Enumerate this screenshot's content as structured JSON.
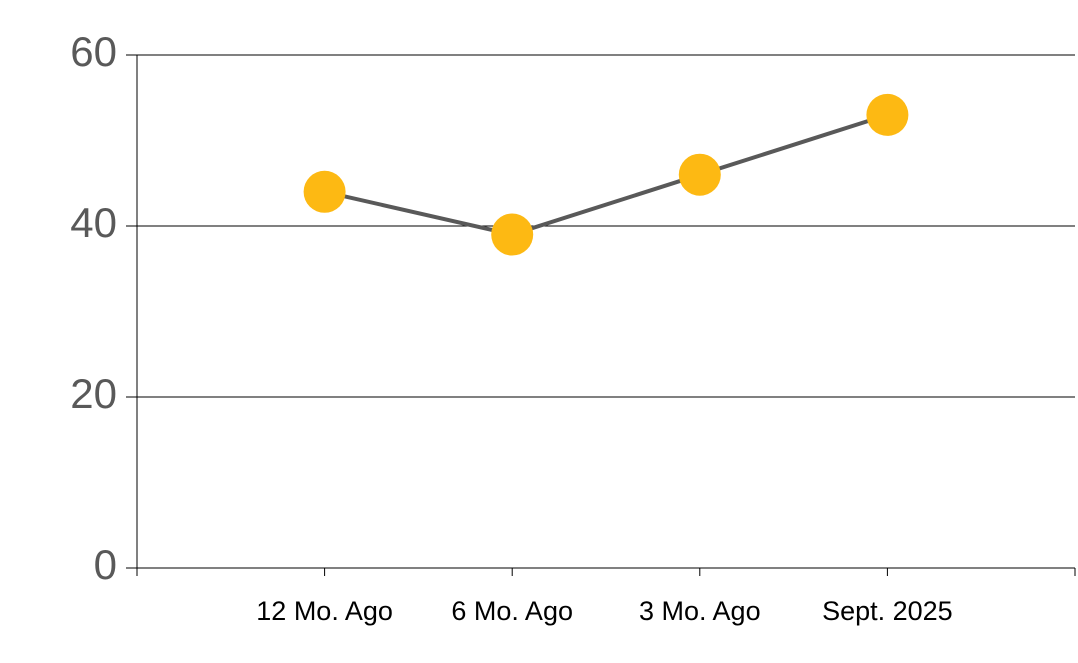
{
  "chart_data": {
    "type": "line",
    "categories": [
      "12 Mo. Ago",
      "6 Mo. Ago",
      "3 Mo. Ago",
      "Sept. 2025"
    ],
    "series": [
      {
        "values": [
          44,
          39,
          46,
          53
        ],
        "color": "#595959",
        "marker_color": "#FDB913"
      }
    ],
    "ylim": [
      0,
      60
    ],
    "yticks": [
      0,
      20,
      40,
      60
    ],
    "grid": true
  }
}
